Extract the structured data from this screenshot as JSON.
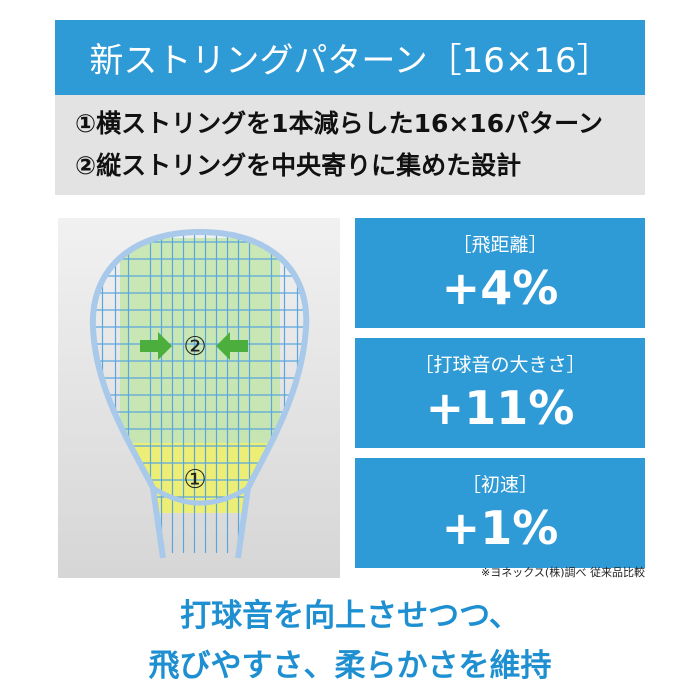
{
  "header": {
    "title": "新ストリングパターン［16×16］"
  },
  "intro": {
    "lines": [
      "①横ストリングを1本減らした16×16パターン",
      "②縦ストリングを中央寄りに集めた設計"
    ]
  },
  "image": {
    "markers": [
      "②",
      "①"
    ]
  },
  "stats": [
    {
      "label": "［飛距離］",
      "value": "+4%"
    },
    {
      "label": "［打球音の大きさ］",
      "value": "+11%"
    },
    {
      "label": "［初速］",
      "value": "+1%"
    }
  ],
  "note": "※ヨネックス(株)調べ 従来品比較",
  "footer": {
    "lines": [
      "打球音を向上させつつ、",
      "飛びやすさ、柔らかさを維持"
    ]
  }
}
